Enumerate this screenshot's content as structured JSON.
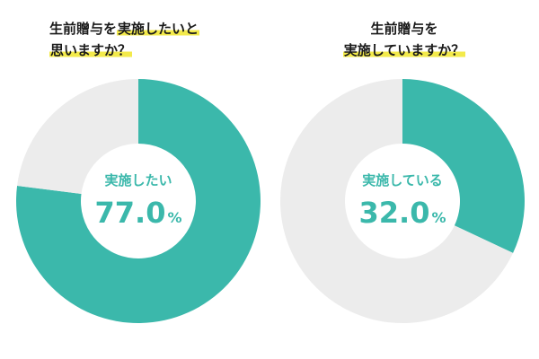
{
  "colors": {
    "accent": "#3bb8ab",
    "rest": "#ececec",
    "highlight": "#f3ea4b",
    "text": "#1a1a1a"
  },
  "charts": [
    {
      "title_line1_plain": "生前贈与を",
      "title_line1_hl": "実施したいと",
      "title_line2_hl": "思いますか？",
      "center_label": "実施したい",
      "value_text": "77.0",
      "unit": "%"
    },
    {
      "title_line1_hl": "生前贈与を",
      "title_line2_hl": "実施していますか？",
      "center_label": "実施している",
      "value_text": "32.0",
      "unit": "%"
    }
  ],
  "chart_data": [
    {
      "type": "pie",
      "categories": [
        "実施したい",
        ""
      ],
      "values": [
        77.0,
        23.0
      ],
      "title": "生前贈与を実施したいと思いますか？"
    },
    {
      "type": "pie",
      "categories": [
        "実施している",
        ""
      ],
      "values": [
        32.0,
        68.0
      ],
      "title": "生前贈与を実施していますか？"
    }
  ]
}
